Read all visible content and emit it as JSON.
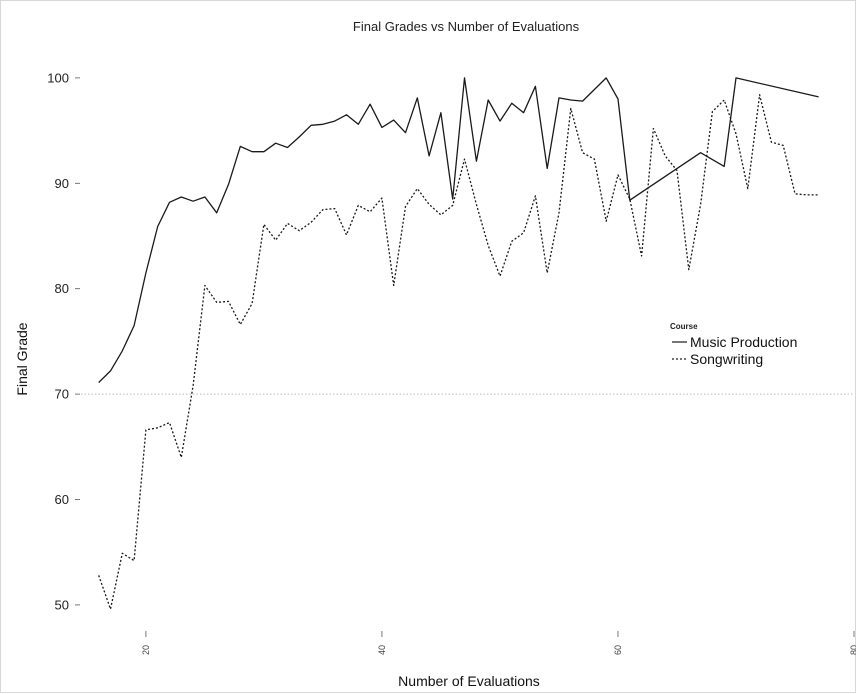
{
  "chart_data": {
    "type": "line",
    "title": "Final Grades vs Number of Evaluations",
    "xlabel": "Number of Evaluations",
    "ylabel": "Final Grade",
    "xlim": [
      14.5,
      80
    ],
    "ylim": [
      48,
      103.5
    ],
    "x_ticks": [
      20,
      40,
      60,
      80
    ],
    "y_ticks": [
      50,
      60,
      70,
      80,
      90,
      100
    ],
    "reference_line": {
      "y": 70,
      "style": "dotted"
    },
    "grid": false,
    "legend": {
      "title": "Course",
      "position": "right",
      "entries": [
        "Music Production",
        "Songwriting"
      ]
    },
    "series": [
      {
        "name": "Music Production",
        "style": "solid",
        "x": [
          16,
          17,
          18,
          19,
          20,
          21,
          22,
          23,
          24,
          25,
          26,
          27,
          28,
          29,
          30,
          31,
          32,
          33,
          34,
          35,
          36,
          37,
          38,
          39,
          40,
          41,
          42,
          43,
          44,
          45,
          46,
          47,
          48,
          49,
          50,
          51,
          52,
          53,
          54,
          55,
          56,
          57,
          58,
          59,
          60,
          61,
          67,
          69,
          70,
          77
        ],
        "y": [
          71.1,
          72.2,
          74.1,
          76.5,
          81.5,
          85.9,
          88.2,
          88.7,
          88.3,
          88.7,
          87.2,
          89.9,
          93.5,
          93.0,
          93.0,
          93.8,
          93.4,
          94.4,
          95.5,
          95.6,
          95.9,
          96.5,
          95.6,
          97.5,
          95.3,
          96.0,
          94.8,
          98.1,
          92.6,
          96.7,
          88.5,
          100.0,
          92.1,
          97.9,
          95.9,
          97.6,
          96.7,
          99.2,
          91.4,
          98.1,
          97.9,
          97.8,
          98.9,
          100.0,
          98.0,
          88.4,
          92.9,
          91.6,
          100.0,
          98.2
        ]
      },
      {
        "name": "Songwriting",
        "style": "dotted",
        "x": [
          16,
          17,
          18,
          19,
          20,
          21,
          22,
          23,
          24,
          25,
          26,
          27,
          28,
          29,
          30,
          31,
          32,
          33,
          34,
          35,
          36,
          37,
          38,
          39,
          40,
          41,
          42,
          43,
          44,
          45,
          46,
          47,
          48,
          49,
          50,
          51,
          52,
          53,
          54,
          55,
          56,
          57,
          58,
          59,
          60,
          61,
          62,
          63,
          64,
          65,
          66,
          67,
          68,
          69,
          70,
          71,
          72,
          73,
          74,
          75,
          76,
          77
        ],
        "y": [
          52.8,
          49.6,
          54.9,
          54.2,
          66.6,
          66.8,
          67.3,
          64.0,
          70.8,
          80.3,
          78.7,
          78.8,
          76.6,
          78.6,
          86.1,
          84.6,
          86.2,
          85.5,
          86.3,
          87.5,
          87.6,
          85.1,
          87.9,
          87.3,
          88.6,
          80.3,
          87.8,
          89.5,
          88.0,
          87.0,
          87.9,
          92.3,
          88.0,
          84.1,
          81.2,
          84.5,
          85.3,
          88.8,
          81.5,
          87.2,
          97.1,
          92.9,
          92.3,
          86.4,
          90.8,
          88.5,
          83.1,
          95.2,
          92.6,
          91.2,
          81.8,
          88.0,
          96.8,
          97.9,
          94.7,
          89.5,
          98.4,
          93.9,
          93.6,
          89.0,
          88.9,
          88.9
        ]
      }
    ]
  }
}
